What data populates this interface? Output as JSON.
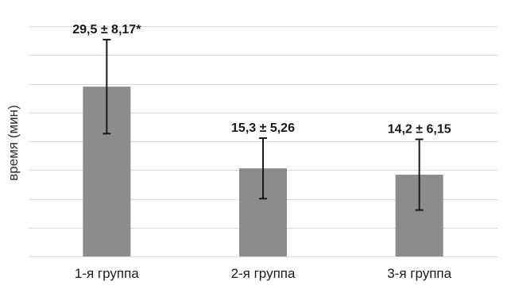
{
  "chart_data": {
    "type": "bar",
    "title": "",
    "xlabel": "",
    "ylabel": "время (мин)",
    "ylim": [
      0,
      40
    ],
    "grid": true,
    "categories": [
      "1-я группа",
      "2-я группа",
      "3-я группа"
    ],
    "values": [
      29.5,
      15.3,
      14.2
    ],
    "errors": [
      8.17,
      5.26,
      6.15
    ],
    "data_labels": [
      "29,5 ± 8,17*",
      "15,3 ± 5,26",
      "14,2 ± 6,15"
    ],
    "bar_color": "#8c8c8c",
    "gridline_step": 5
  }
}
